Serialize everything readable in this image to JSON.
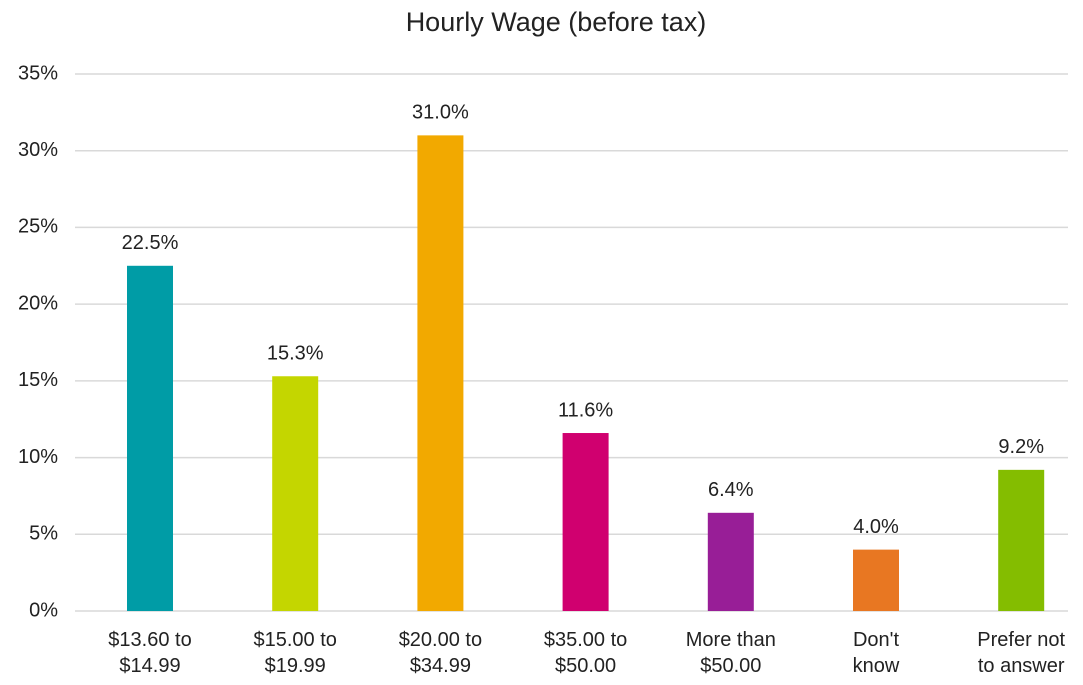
{
  "chart_data": {
    "type": "bar",
    "title": "Hourly Wage (before tax)",
    "categories": [
      [
        "$13.60 to",
        "$14.99"
      ],
      [
        "$15.00 to",
        "$19.99"
      ],
      [
        "$20.00 to",
        "$34.99"
      ],
      [
        "$35.00 to",
        "$50.00"
      ],
      [
        "More than",
        "$50.00"
      ],
      [
        "Don't",
        "know"
      ],
      [
        "Prefer not",
        "to answer"
      ]
    ],
    "values": [
      22.5,
      15.3,
      31.0,
      11.6,
      6.4,
      4.0,
      9.2
    ],
    "value_labels": [
      "22.5%",
      "15.3%",
      "31.0%",
      "11.6%",
      "6.4%",
      "4.0%",
      "9.2%"
    ],
    "colors": [
      "#009ca6",
      "#c4d600",
      "#f2a900",
      "#d0006f",
      "#981e97",
      "#e87722",
      "#84bd00"
    ],
    "ylim": [
      0,
      35
    ],
    "yticks": [
      {
        "value": 0,
        "label": "0%"
      },
      {
        "value": 5,
        "label": "5%"
      },
      {
        "value": 10,
        "label": "10%"
      },
      {
        "value": 15,
        "label": "15%"
      },
      {
        "value": 20,
        "label": "20%"
      },
      {
        "value": 25,
        "label": "25%"
      },
      {
        "value": 30,
        "label": "30%"
      },
      {
        "value": 35,
        "label": "35%"
      }
    ],
    "grid": true
  }
}
